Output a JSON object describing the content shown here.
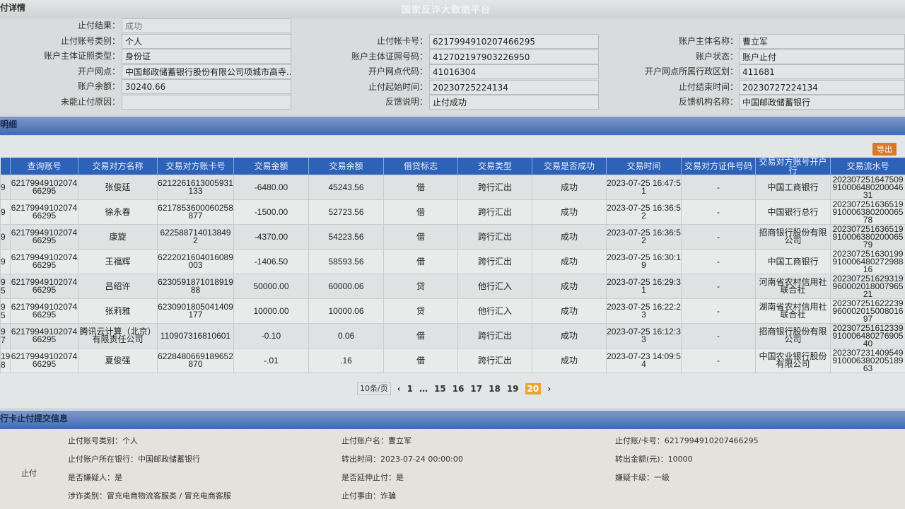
{
  "header": {
    "title": "付详情",
    "watermark": "国家反诈大数据平台"
  },
  "detail": {
    "col1": [
      {
        "label": "止付结果：",
        "value": "成功"
      },
      {
        "label": "止付账号类别：",
        "value": "个人"
      },
      {
        "label": "账户主体证照类型：",
        "value": "身份证"
      },
      {
        "label": "开户网点：",
        "value": "中国邮政储蓄银行股份有限公司项城市高寺..."
      },
      {
        "label": "账户余额：",
        "value": "30240.66"
      },
      {
        "label": "未能止付原因：",
        "value": ""
      }
    ],
    "col2": [
      {
        "label": "止付帐卡号：",
        "value": "6217994910207466295"
      },
      {
        "label": "账户主体证照号码：",
        "value": "412702197903226950"
      },
      {
        "label": "开户网点代码：",
        "value": "41016304"
      },
      {
        "label": "止付起始时间：",
        "value": "20230725224134"
      },
      {
        "label": "反馈说明：",
        "value": "止付成功"
      }
    ],
    "col3": [
      {
        "label": "账户主体名称：",
        "value": "曹立军"
      },
      {
        "label": "账户状态：",
        "value": "账户止付"
      },
      {
        "label": "开户网点所属行政区划：",
        "value": "411681"
      },
      {
        "label": "止付结束时间：",
        "value": "20230727224134"
      },
      {
        "label": "反馈机构名称：",
        "value": "中国邮政储蓄银行"
      }
    ]
  },
  "section2": {
    "title": "明细",
    "export_label": "导出"
  },
  "table": {
    "headers": [
      "",
      "查询账号",
      "交易对方名称",
      "交易对方账卡号",
      "交易金额",
      "交易余额",
      "借贷标志",
      "交易类型",
      "交易是否成功",
      "交易时间",
      "交易对方证件号码",
      "交易对方账号开户行",
      "交易流水号"
    ],
    "rows": [
      [
        "9",
        "6217994910207466295",
        "张俊廷",
        "6212261613005931133",
        "-6480.00",
        "45243.56",
        "借",
        "跨行汇出",
        "成功",
        "2023-07-25 16:47:51",
        "-",
        "中国工商银行",
        "20230725164750991000648020004631"
      ],
      [
        "9",
        "6217994910207466295",
        "徐永春",
        "6217853600060258877",
        "-1500.00",
        "52723.56",
        "借",
        "跨行汇出",
        "成功",
        "2023-07-25 16:36:52",
        "-",
        "中国银行总行",
        "20230725163651991000638020006578"
      ],
      [
        "9",
        "6217994910207466295",
        "康旋",
        "622588714013849 2",
        "-4370.00",
        "54223.56",
        "借",
        "跨行汇出",
        "成功",
        "2023-07-25 16:36:52",
        "-",
        "招商银行股份有限公司",
        "20230725163651991000638020006579"
      ],
      [
        "9",
        "6217994910207466295",
        "王福辉",
        "6222021604016089003",
        "-1406.50",
        "58593.56",
        "借",
        "跨行汇出",
        "成功",
        "2023-07-25 16:30:19",
        "-",
        "中国工商银行",
        "20230725163019991000648027298816"
      ],
      [
        "9 5",
        "6217994910207466295",
        "吕绍许",
        "623059187101891988",
        "50000.00",
        "60000.06",
        "贷",
        "他行汇入",
        "成功",
        "2023-07-25 16:29:31",
        "-",
        "河南省农村信用社联合社",
        "20230725162931996000201800796521"
      ],
      [
        "9 5",
        "6217994910207466295",
        "张莉雅",
        "6230901805041409177",
        "10000.00",
        "10000.06",
        "贷",
        "他行汇入",
        "成功",
        "2023-07-25 16:22:23",
        "-",
        "湖南省农村信用社联合社",
        "20230725162223996000201500801697"
      ],
      [
        "9 7",
        "6217994910207466295",
        "腾讯云计算（北京）有限责任公司",
        "110907316810601",
        "-0.10",
        "0.06",
        "借",
        "跨行汇出",
        "成功",
        "2023-07-25 16:12:33",
        "-",
        "招商银行股份有限公司",
        "20230725161233991000648027690540"
      ],
      [
        "19 8",
        "6217994910207466295",
        "夏俊强",
        "6228480669189652870",
        "-.01",
        ".16",
        "借",
        "跨行汇出",
        "成功",
        "2023-07-23 14:09:54",
        "-",
        "中国农业银行股份有限公司",
        "20230723140954991000638020518963"
      ]
    ]
  },
  "pager": {
    "size": "10条/页",
    "prev": "‹",
    "next": "›",
    "pages": [
      "1",
      "…",
      "15",
      "16",
      "17",
      "18",
      "19",
      "20"
    ],
    "current": "20"
  },
  "submit": {
    "title": "行卡止付提交信息",
    "side_label": "止付",
    "items": [
      "止付账号类别：个人",
      "止付账户名：曹立军",
      "止付账/卡号：6217994910207466295",
      "止付账户所在银行：中国邮政储蓄银行",
      "转出时间：2023-07-24 00:00:00",
      "转出金额(元)：10000",
      "是否嫌疑人：是",
      "是否延伸止付：是",
      "嫌疑卡级：一级",
      "涉诈类别：冒充电商物流客服类 / 冒充电商客服",
      "止付事由：诈骗"
    ]
  }
}
